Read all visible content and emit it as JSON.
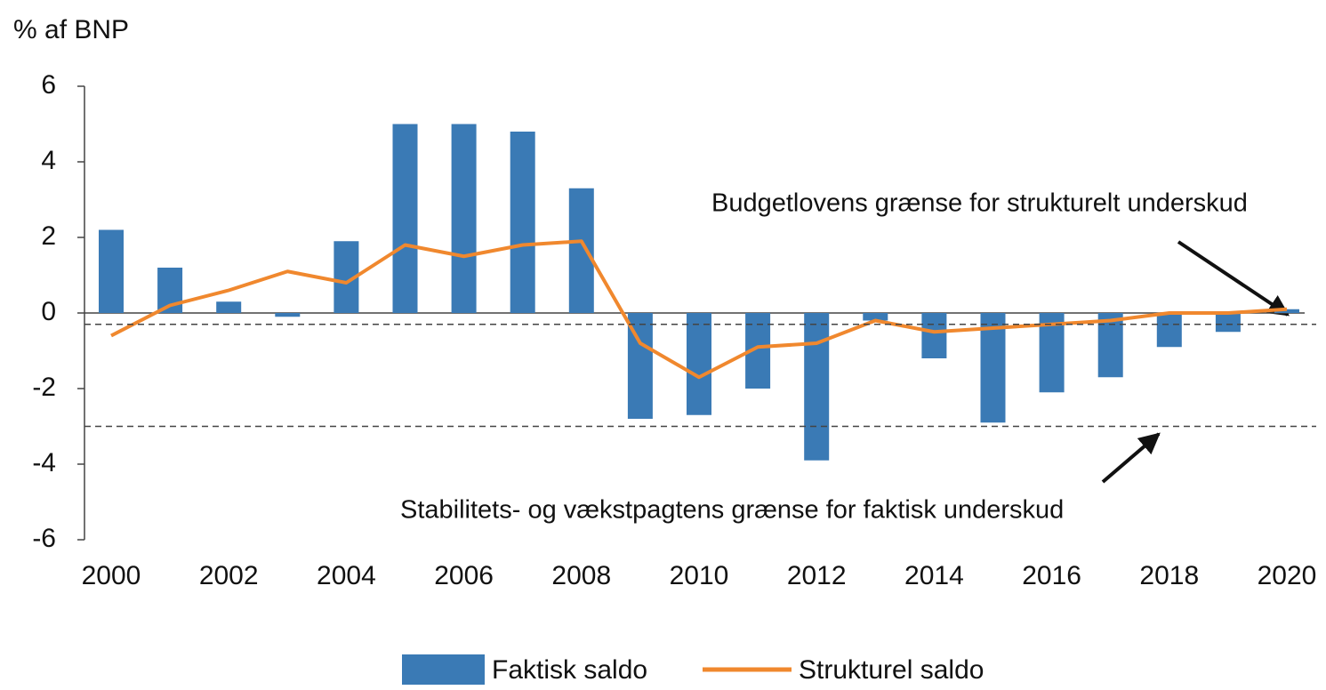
{
  "chart_data": {
    "type": "bar",
    "y_label": "% af BNP",
    "categories": [
      "2000",
      null,
      "2002",
      null,
      "2004",
      null,
      "2006",
      null,
      "2008",
      null,
      "2010",
      null,
      "2012",
      null,
      "2014",
      null,
      "2016",
      null,
      "2018",
      null,
      "2020"
    ],
    "series": [
      {
        "name": "Faktisk saldo",
        "type": "bar",
        "color": "#3a7ab5",
        "values": [
          2.2,
          1.2,
          0.3,
          -0.1,
          1.9,
          5.0,
          5.0,
          4.8,
          3.3,
          -2.8,
          -2.7,
          -2.0,
          -3.9,
          -0.2,
          -1.2,
          -2.9,
          -2.1,
          -1.7,
          -0.9,
          -0.5,
          0.1
        ]
      },
      {
        "name": "Strukturel saldo",
        "type": "line",
        "color": "#f0882e",
        "values": [
          -0.6,
          0.2,
          0.6,
          1.1,
          0.8,
          1.8,
          1.5,
          1.8,
          1.9,
          -0.8,
          -1.7,
          -0.9,
          -0.8,
          -0.2,
          -0.5,
          -0.4,
          -0.3,
          -0.2,
          0.0,
          0.0,
          0.1
        ]
      }
    ],
    "reference_lines": [
      {
        "value": -0.3,
        "label": "Budgetlovens grænse for strukturelt underskud"
      },
      {
        "value": -3,
        "label": "Stabilitets- og vækstpagtens grænse for faktisk underskud"
      }
    ],
    "ylim": [
      -6,
      6
    ],
    "yticks": [
      6,
      4,
      2,
      0,
      -2,
      -4,
      -6
    ]
  }
}
